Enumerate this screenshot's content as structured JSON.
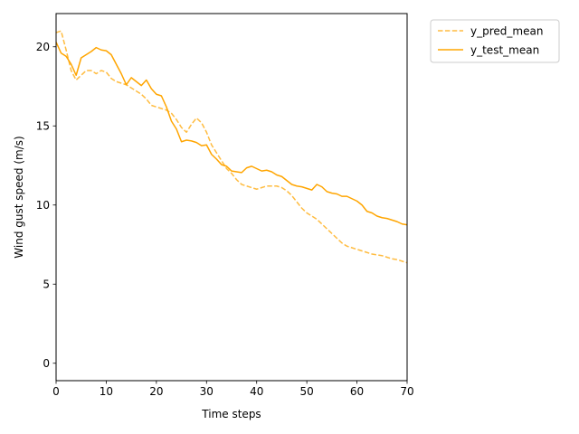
{
  "chart_data": {
    "type": "line",
    "xlabel": "Time steps",
    "ylabel": "Wind gust speed (m/s)",
    "xlim": [
      0,
      70
    ],
    "ylim": [
      -1.1,
      22.1
    ],
    "xticks": [
      0,
      10,
      20,
      30,
      40,
      50,
      60,
      70
    ],
    "yticks": [
      0,
      5,
      10,
      15,
      20
    ],
    "grid": false,
    "legend_position": "outside-top-right",
    "series": [
      {
        "name": "y_pred_mean",
        "style": "dashed",
        "color": "#ffa500",
        "x": [
          0,
          1,
          2,
          3,
          4,
          5,
          6,
          7,
          8,
          9,
          10,
          11,
          12,
          13,
          14,
          15,
          16,
          17,
          18,
          19,
          20,
          21,
          22,
          23,
          24,
          25,
          26,
          27,
          28,
          29,
          30,
          31,
          32,
          33,
          34,
          35,
          36,
          37,
          38,
          39,
          40,
          41,
          42,
          43,
          44,
          45,
          46,
          47,
          48,
          49,
          50,
          51,
          52,
          53,
          54,
          55,
          56,
          57,
          58,
          59,
          60,
          61,
          62,
          63,
          64,
          65,
          66,
          67,
          68,
          69,
          70
        ],
        "y": [
          20.9,
          21.0,
          19.8,
          18.5,
          17.9,
          18.2,
          18.5,
          18.5,
          18.3,
          18.5,
          18.4,
          18.0,
          17.8,
          17.7,
          17.6,
          17.4,
          17.2,
          17.0,
          16.7,
          16.3,
          16.2,
          16.1,
          16.0,
          15.8,
          15.4,
          14.9,
          14.6,
          15.1,
          15.5,
          15.2,
          14.6,
          13.8,
          13.3,
          12.8,
          12.3,
          12.0,
          11.6,
          11.3,
          11.2,
          11.1,
          11.0,
          11.1,
          11.2,
          11.2,
          11.2,
          11.1,
          10.9,
          10.6,
          10.2,
          9.8,
          9.5,
          9.3,
          9.1,
          8.8,
          8.5,
          8.2,
          7.9,
          7.6,
          7.4,
          7.3,
          7.2,
          7.1,
          7.0,
          6.9,
          6.85,
          6.8,
          6.7,
          6.6,
          6.55,
          6.45,
          6.35
        ]
      },
      {
        "name": "y_test_mean",
        "style": "solid",
        "color": "#ffa500",
        "x": [
          0,
          1,
          2,
          3,
          4,
          5,
          6,
          7,
          8,
          9,
          10,
          11,
          12,
          13,
          14,
          15,
          16,
          17,
          18,
          19,
          20,
          21,
          22,
          23,
          24,
          25,
          26,
          27,
          28,
          29,
          30,
          31,
          32,
          33,
          34,
          35,
          36,
          37,
          38,
          39,
          40,
          41,
          42,
          43,
          44,
          45,
          46,
          47,
          48,
          49,
          50,
          51,
          52,
          53,
          54,
          55,
          56,
          57,
          58,
          59,
          60,
          61,
          62,
          63,
          64,
          65,
          66,
          67,
          68,
          69,
          70
        ],
        "y": [
          20.3,
          19.6,
          19.4,
          18.9,
          18.2,
          19.3,
          19.5,
          19.7,
          19.95,
          19.8,
          19.75,
          19.5,
          18.9,
          18.3,
          17.6,
          18.05,
          17.8,
          17.55,
          17.9,
          17.35,
          17.0,
          16.9,
          16.2,
          15.3,
          14.8,
          14.0,
          14.1,
          14.05,
          13.95,
          13.75,
          13.8,
          13.2,
          12.9,
          12.55,
          12.45,
          12.15,
          12.1,
          12.05,
          12.35,
          12.45,
          12.3,
          12.15,
          12.2,
          12.1,
          11.9,
          11.8,
          11.55,
          11.3,
          11.2,
          11.15,
          11.05,
          10.95,
          11.3,
          11.15,
          10.85,
          10.75,
          10.7,
          10.55,
          10.55,
          10.4,
          10.25,
          10.0,
          9.6,
          9.5,
          9.3,
          9.2,
          9.15,
          9.05,
          8.95,
          8.8,
          8.75
        ]
      }
    ]
  }
}
